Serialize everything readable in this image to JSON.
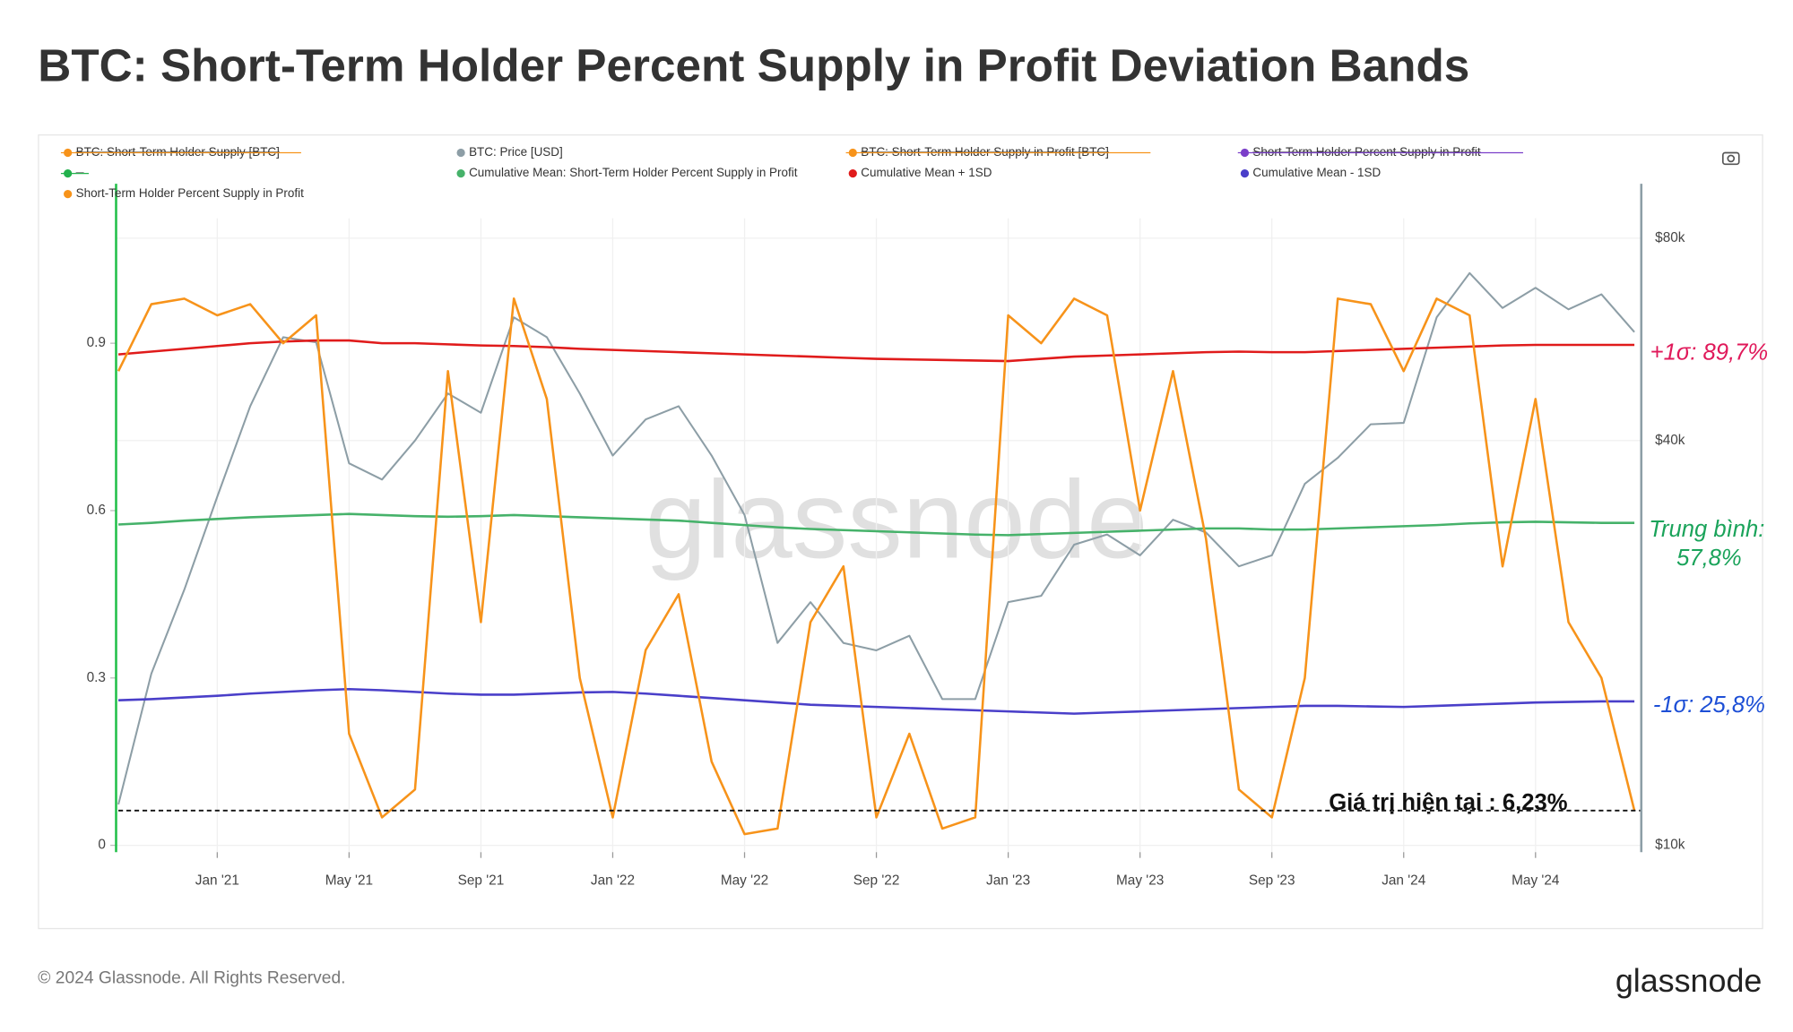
{
  "chart_data": {
    "type": "line",
    "title": "BTC: Short-Term Holder Percent Supply in Profit Deviation Bands",
    "footer": "© 2024 Glassnode. All Rights Reserved.",
    "logo": "glassnode",
    "watermark": "glassnode",
    "x": [
      "2020-10",
      "2020-11",
      "2020-12",
      "2021-01",
      "2021-02",
      "2021-03",
      "2021-04",
      "2021-05",
      "2021-06",
      "2021-07",
      "2021-08",
      "2021-09",
      "2021-10",
      "2021-11",
      "2021-12",
      "2022-01",
      "2022-02",
      "2022-03",
      "2022-04",
      "2022-05",
      "2022-06",
      "2022-07",
      "2022-08",
      "2022-09",
      "2022-10",
      "2022-11",
      "2022-12",
      "2023-01",
      "2023-02",
      "2023-03",
      "2023-04",
      "2023-05",
      "2023-06",
      "2023-07",
      "2023-08",
      "2023-09",
      "2023-10",
      "2023-11",
      "2023-12",
      "2024-01",
      "2024-02",
      "2024-03",
      "2024-04",
      "2024-05",
      "2024-06",
      "2024-07",
      "2024-08"
    ],
    "xlim": [
      "2020-10",
      "2024-08"
    ],
    "xticks": [
      {
        "value": "2021-01",
        "label": "Jan '21"
      },
      {
        "value": "2021-05",
        "label": "May '21"
      },
      {
        "value": "2021-09",
        "label": "Sep '21"
      },
      {
        "value": "2022-01",
        "label": "Jan '22"
      },
      {
        "value": "2022-05",
        "label": "May '22"
      },
      {
        "value": "2022-09",
        "label": "Sep '22"
      },
      {
        "value": "2023-01",
        "label": "Jan '23"
      },
      {
        "value": "2023-05",
        "label": "May '23"
      },
      {
        "value": "2023-09",
        "label": "Sep '23"
      },
      {
        "value": "2024-01",
        "label": "Jan '24"
      },
      {
        "value": "2024-05",
        "label": "May '24"
      }
    ],
    "ylim": [
      0,
      1.12
    ],
    "yticks": [
      0,
      0.3,
      0.6,
      0.9
    ],
    "y2lim": [
      10000,
      85000
    ],
    "y2log": true,
    "y2ticks": [
      {
        "value": 10000,
        "label": "$10k"
      },
      {
        "value": 40000,
        "label": "$40k"
      },
      {
        "value": 80000,
        "label": "$80k"
      }
    ],
    "grid": true,
    "series": [
      {
        "name": "BTC: Short-Term Holder Supply [BTC]",
        "color": "#f7931a",
        "hidden": true
      },
      {
        "name": "BTC: Price [USD]",
        "color": "#8d9ea6",
        "axis": "y2",
        "values": [
          11500,
          18000,
          24000,
          33000,
          45000,
          57000,
          56000,
          37000,
          35000,
          40000,
          47000,
          44000,
          61000,
          57000,
          47000,
          38000,
          43000,
          45000,
          38000,
          31000,
          20000,
          23000,
          20000,
          19500,
          20500,
          16500,
          16500,
          23000,
          23500,
          28000,
          29000,
          27000,
          30500,
          29200,
          26000,
          27000,
          34500,
          37700,
          42300,
          42500,
          61000,
          71000,
          63000,
          67500,
          62700,
          66000,
          58000
        ]
      },
      {
        "name": "BTC: Short-Term Holder Supply in Profit [BTC]",
        "color": "#f7931a",
        "hidden": true
      },
      {
        "name": "Short-Term Holder Percent Supply in Profit",
        "color": "#7b3fc9",
        "hidden": true
      },
      {
        "name": "--",
        "color": "#22b14c",
        "hidden": true
      },
      {
        "name": "Cumulative Mean: Short-Term Holder Percent Supply in Profit",
        "color": "#46b26a",
        "values": [
          0.575,
          0.578,
          0.582,
          0.585,
          0.588,
          0.59,
          0.592,
          0.594,
          0.592,
          0.59,
          0.589,
          0.59,
          0.592,
          0.59,
          0.588,
          0.586,
          0.584,
          0.582,
          0.578,
          0.574,
          0.57,
          0.567,
          0.565,
          0.563,
          0.561,
          0.559,
          0.557,
          0.556,
          0.558,
          0.56,
          0.562,
          0.564,
          0.566,
          0.568,
          0.568,
          0.566,
          0.566,
          0.568,
          0.57,
          0.572,
          0.574,
          0.577,
          0.579,
          0.58,
          0.579,
          0.578,
          0.578
        ]
      },
      {
        "name": "Cumulative Mean + 1SD",
        "color": "#e01b1b",
        "values": [
          0.88,
          0.885,
          0.89,
          0.895,
          0.9,
          0.903,
          0.905,
          0.905,
          0.9,
          0.9,
          0.898,
          0.896,
          0.895,
          0.893,
          0.89,
          0.888,
          0.886,
          0.884,
          0.882,
          0.88,
          0.878,
          0.876,
          0.874,
          0.872,
          0.871,
          0.87,
          0.869,
          0.868,
          0.872,
          0.876,
          0.878,
          0.88,
          0.882,
          0.884,
          0.885,
          0.884,
          0.884,
          0.886,
          0.888,
          0.89,
          0.892,
          0.894,
          0.896,
          0.897,
          0.897,
          0.897,
          0.897
        ]
      },
      {
        "name": "Cumulative Mean - 1SD",
        "color": "#4a3fc9",
        "values": [
          0.26,
          0.262,
          0.265,
          0.268,
          0.272,
          0.275,
          0.278,
          0.28,
          0.278,
          0.275,
          0.272,
          0.27,
          0.27,
          0.272,
          0.274,
          0.275,
          0.272,
          0.268,
          0.264,
          0.26,
          0.256,
          0.252,
          0.25,
          0.248,
          0.246,
          0.244,
          0.242,
          0.24,
          0.238,
          0.236,
          0.238,
          0.24,
          0.242,
          0.244,
          0.246,
          0.248,
          0.25,
          0.25,
          0.249,
          0.248,
          0.25,
          0.252,
          0.254,
          0.256,
          0.257,
          0.258,
          0.258
        ]
      },
      {
        "name": "Short-Term Holder Percent Supply in Profit",
        "color": "#f7931a",
        "values": [
          0.85,
          0.97,
          0.98,
          0.95,
          0.97,
          0.9,
          0.95,
          0.2,
          0.05,
          0.1,
          0.85,
          0.4,
          0.98,
          0.8,
          0.3,
          0.05,
          0.35,
          0.45,
          0.15,
          0.02,
          0.03,
          0.4,
          0.5,
          0.05,
          0.2,
          0.03,
          0.05,
          0.95,
          0.9,
          0.98,
          0.95,
          0.6,
          0.85,
          0.55,
          0.1,
          0.05,
          0.3,
          0.98,
          0.97,
          0.85,
          0.98,
          0.95,
          0.5,
          0.8,
          0.4,
          0.3,
          0.0623
        ]
      }
    ],
    "annotations": [
      "+1σ: 89,7%",
      "Trung bình:",
      "57,8%",
      "-1σ: 25,8%",
      "Giá trị hiện tại : 6,23%"
    ]
  }
}
